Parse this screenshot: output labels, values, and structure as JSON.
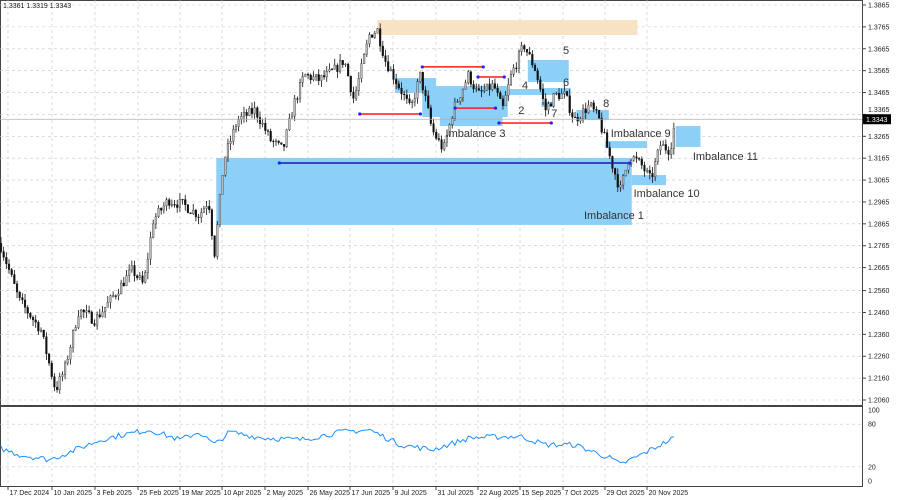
{
  "header": {
    "ohlc_text": "1.3361 1.3319 1.3343"
  },
  "colors": {
    "zone": "#8ccff7",
    "peach_zone": "#f8e2c4",
    "level_line": "#1a1aa8",
    "red_line": "#ff1a1a",
    "swing_dot": "#2222ff",
    "rsi_line": "#1e90ff",
    "price_tag_bg": "#000000"
  },
  "chart_data": {
    "type": "candlestick",
    "current_price": "1.3343",
    "price_ticks": [
      "1.3865",
      "1.3765",
      "1.3665",
      "1.3565",
      "1.3465",
      "1.3365",
      "1.3265",
      "1.3165",
      "1.3065",
      "1.2965",
      "1.2865",
      "1.2765",
      "1.2665",
      "1.2560",
      "1.2460",
      "1.2360",
      "1.2260",
      "1.2160",
      "1.2060"
    ],
    "ylim": [
      1.206,
      1.3865
    ],
    "date_ticks": [
      {
        "label": "17 Dec 2024",
        "date": "2024-12-17"
      },
      {
        "label": "10 Jan 2025",
        "date": "2025-01-10"
      },
      {
        "label": "3 Feb 2025",
        "date": "2025-02-03"
      },
      {
        "label": "25 Feb 2025",
        "date": "2025-02-25"
      },
      {
        "label": "19 Mar 2025",
        "date": "2025-03-19"
      },
      {
        "label": "10 Apr 2025",
        "date": "2025-04-10"
      },
      {
        "label": "2 May 2025",
        "date": "2025-05-02"
      },
      {
        "label": "26 May 2025",
        "date": "2025-05-26"
      },
      {
        "label": "17 Jun 2025",
        "date": "2025-06-17"
      },
      {
        "label": "9 Jul 2025",
        "date": "2025-07-09"
      },
      {
        "label": "31 Jul 2025",
        "date": "2025-07-31"
      },
      {
        "label": "22 Aug 2025",
        "date": "2025-08-22"
      },
      {
        "label": "15 Sep 2025",
        "date": "2025-09-15"
      },
      {
        "label": "7 Oct 2025",
        "date": "2025-10-07"
      },
      {
        "label": "29 Oct 2025",
        "date": "2025-10-29"
      },
      {
        "label": "20 Nov 2025",
        "date": "2025-11-20"
      }
    ],
    "price_path": [
      [
        "2024-12-13",
        1.2768
      ],
      [
        "2024-12-23",
        1.2517
      ],
      [
        "2025-01-04",
        1.238
      ],
      [
        "2025-01-12",
        1.2105
      ],
      [
        "2025-01-17",
        1.2197
      ],
      [
        "2025-01-25",
        1.2471
      ],
      [
        "2025-02-03",
        1.2425
      ],
      [
        "2025-02-11",
        1.2517
      ],
      [
        "2025-02-22",
        1.2654
      ],
      [
        "2025-02-28",
        1.2585
      ],
      [
        "2025-03-05",
        1.2882
      ],
      [
        "2025-03-13",
        1.2974
      ],
      [
        "2025-03-21",
        1.2951
      ],
      [
        "2025-03-29",
        1.2905
      ],
      [
        "2025-04-03",
        1.2974
      ],
      [
        "2025-04-06",
        1.2722
      ],
      [
        "2025-04-11",
        1.3157
      ],
      [
        "2025-04-18",
        1.3339
      ],
      [
        "2025-04-27",
        1.3385
      ],
      [
        "2025-05-05",
        1.3248
      ],
      [
        "2025-05-12",
        1.3202
      ],
      [
        "2025-05-18",
        1.3408
      ],
      [
        "2025-05-24",
        1.3545
      ],
      [
        "2025-06-01",
        1.3522
      ],
      [
        "2025-06-09",
        1.3568
      ],
      [
        "2025-06-14",
        1.3614
      ],
      [
        "2025-06-19",
        1.3431
      ],
      [
        "2025-06-27",
        1.3728
      ],
      [
        "2025-07-01",
        1.3751
      ],
      [
        "2025-07-05",
        1.3614
      ],
      [
        "2025-07-13",
        1.3477
      ],
      [
        "2025-07-18",
        1.3385
      ],
      [
        "2025-07-23",
        1.3545
      ],
      [
        "2025-07-29",
        1.3294
      ],
      [
        "2025-08-04",
        1.3202
      ],
      [
        "2025-08-09",
        1.3385
      ],
      [
        "2025-08-17",
        1.3545
      ],
      [
        "2025-08-22",
        1.3454
      ],
      [
        "2025-08-31",
        1.3499
      ],
      [
        "2025-09-05",
        1.3385
      ],
      [
        "2025-09-10",
        1.3545
      ],
      [
        "2025-09-17",
        1.3682
      ],
      [
        "2025-09-23",
        1.3568
      ],
      [
        "2025-09-28",
        1.3385
      ],
      [
        "2025-10-03",
        1.3454
      ],
      [
        "2025-10-08",
        1.3454
      ],
      [
        "2025-10-13",
        1.3339
      ],
      [
        "2025-10-21",
        1.3408
      ],
      [
        "2025-10-26",
        1.3339
      ],
      [
        "2025-11-01",
        1.3157
      ],
      [
        "2025-11-06",
        1.302
      ],
      [
        "2025-11-11",
        1.318
      ],
      [
        "2025-11-17",
        1.3134
      ],
      [
        "2025-11-22",
        1.3065
      ],
      [
        "2025-11-27",
        1.3225
      ],
      [
        "2025-12-02",
        1.3202
      ],
      [
        "2025-12-05",
        1.3343
      ]
    ],
    "zones": [
      {
        "name": "imbalance-1",
        "from": "2025-04-07",
        "to": "2025-11-12",
        "high": 1.3166,
        "low": 1.286,
        "color": "zone"
      },
      {
        "name": "peach-zone",
        "from": "2025-07-01",
        "to": "2025-11-15",
        "high": 1.3796,
        "low": 1.3728,
        "color": "peach_zone"
      },
      {
        "name": "zone-a",
        "from": "2025-07-10",
        "to": "2025-07-31",
        "high": 1.3531,
        "low": 1.3463,
        "color": "zone"
      },
      {
        "name": "zone-2",
        "from": "2025-07-24",
        "to": "2025-09-08",
        "high": 1.3495,
        "low": 1.3353,
        "color": "zone"
      },
      {
        "name": "imbalance-3",
        "from": "2025-08-02",
        "to": "2025-09-05",
        "high": 1.3358,
        "low": 1.3312,
        "color": "zone"
      },
      {
        "name": "zone-5",
        "from": "2025-09-19",
        "to": "2025-10-10",
        "high": 1.3614,
        "low": 1.3513,
        "color": "zone"
      },
      {
        "name": "zone-4",
        "from": "2025-09-09",
        "to": "2025-10-09",
        "high": 1.3481,
        "low": 1.3454,
        "color": "zone"
      },
      {
        "name": "zone-6",
        "from": "2025-09-26",
        "to": "2025-10-11",
        "high": 1.3486,
        "low": 1.3454,
        "color": "zone"
      },
      {
        "name": "zone-7",
        "from": "2025-09-26",
        "to": "2025-10-02",
        "high": 1.3422,
        "low": 1.3399,
        "color": "zone"
      },
      {
        "name": "zone-8",
        "from": "2025-10-14",
        "to": "2025-10-31",
        "high": 1.3385,
        "low": 1.3339,
        "color": "zone"
      },
      {
        "name": "imbalance-9",
        "from": "2025-10-29",
        "to": "2025-11-20",
        "high": 1.3243,
        "low": 1.3211,
        "color": "zone"
      },
      {
        "name": "imbalance-10",
        "from": "2025-11-12",
        "to": "2025-11-30",
        "high": 1.3088,
        "low": 1.3042,
        "color": "zone"
      },
      {
        "name": "imbalance-11",
        "from": "2025-12-05",
        "to": "2025-12-18",
        "high": 1.3312,
        "low": 1.3216,
        "color": "zone"
      }
    ],
    "level_lines": [
      {
        "from": "2025-05-10",
        "to": "2025-11-11",
        "price": 1.3143,
        "color": "level_line"
      },
      {
        "from": "2025-06-22",
        "to": "2025-07-23",
        "price": 1.3367,
        "color": "red_line"
      },
      {
        "from": "2025-07-24",
        "to": "2025-08-25",
        "price": 1.3582,
        "color": "red_line"
      },
      {
        "from": "2025-08-10",
        "to": "2025-09-01",
        "price": 1.3394,
        "color": "red_line"
      },
      {
        "from": "2025-08-22",
        "to": "2025-09-06",
        "price": 1.3536,
        "color": "red_line"
      },
      {
        "from": "2025-09-03",
        "to": "2025-10-01",
        "price": 1.3326,
        "color": "red_line"
      }
    ],
    "annotations": [
      {
        "text": "5",
        "date": "2025-10-07",
        "price": 1.3659
      },
      {
        "text": "4",
        "date": "2025-09-16",
        "price": 1.3499
      },
      {
        "text": "6",
        "date": "2025-10-07",
        "price": 1.3513
      },
      {
        "text": "7",
        "date": "2025-10-01",
        "price": 1.3371
      },
      {
        "text": "2",
        "date": "2025-09-14",
        "price": 1.3385
      },
      {
        "text": "8",
        "date": "2025-10-28",
        "price": 1.3417
      },
      {
        "text": "Imbalance 3",
        "date": "2025-08-05",
        "price": 1.328
      },
      {
        "text": "Imbalance 9",
        "date": "2025-11-01",
        "price": 1.328
      },
      {
        "text": "Imbalance 10",
        "date": "2025-11-13",
        "price": 1.3006
      },
      {
        "text": "Imbalance 11",
        "date": "2025-12-14",
        "price": 1.3175
      },
      {
        "text": "Imbalance 1",
        "date": "2025-10-18",
        "price": 1.2905
      }
    ],
    "oscillator": {
      "ticks": [
        "100",
        "80",
        "20",
        "0"
      ],
      "ylim": [
        0,
        100
      ],
      "values": [
        [
          "2024-12-13",
          46
        ],
        [
          "2024-12-23",
          37
        ],
        [
          "2025-01-09",
          30
        ],
        [
          "2025-01-25",
          46
        ],
        [
          "2025-02-06",
          58
        ],
        [
          "2025-02-17",
          65
        ],
        [
          "2025-03-03",
          72
        ],
        [
          "2025-03-19",
          58
        ],
        [
          "2025-03-29",
          69
        ],
        [
          "2025-04-06",
          51
        ],
        [
          "2025-04-14",
          69
        ],
        [
          "2025-04-30",
          61
        ],
        [
          "2025-05-22",
          58
        ],
        [
          "2025-06-12",
          69
        ],
        [
          "2025-06-27",
          72
        ],
        [
          "2025-07-13",
          51
        ],
        [
          "2025-07-29",
          44
        ],
        [
          "2025-08-18",
          61
        ],
        [
          "2025-09-15",
          63
        ],
        [
          "2025-09-28",
          51
        ],
        [
          "2025-10-13",
          51
        ],
        [
          "2025-11-01",
          32
        ],
        [
          "2025-11-06",
          23
        ],
        [
          "2025-11-17",
          37
        ],
        [
          "2025-11-27",
          51
        ],
        [
          "2025-12-05",
          62
        ]
      ]
    }
  }
}
